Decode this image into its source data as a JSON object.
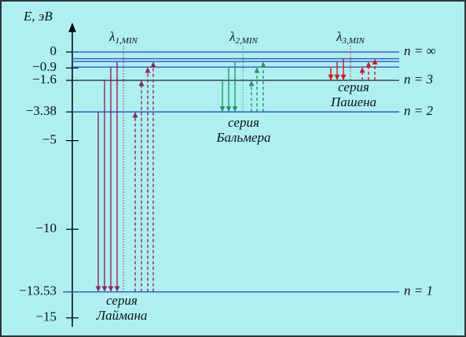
{
  "axis": {
    "label": "E, эВ",
    "ylim": [
      -15.5,
      1.6
    ],
    "ticks": [
      0,
      {
        "value": -0.9,
        "label": "−0.9"
      },
      {
        "value": -1.6,
        "label": "−1.6"
      },
      {
        "value": -3.38,
        "label": "−3.38"
      },
      {
        "value": -5,
        "label": "−5"
      },
      {
        "value": -10,
        "label": "−10"
      },
      {
        "value": -13.53,
        "label": "−13.53"
      },
      {
        "value": -15,
        "label": "−15"
      }
    ]
  },
  "levels": [
    {
      "label": "n = 1",
      "energy": -13.53
    },
    {
      "label": "n = 2",
      "energy": -3.38
    },
    {
      "label": "n = 3",
      "energy": -1.6
    },
    {
      "energy": -0.85
    },
    {
      "energy": -0.54
    },
    {
      "energy": -0.38
    },
    {
      "label": "n = ∞",
      "energy": 0
    }
  ],
  "series": [
    {
      "label": [
        "серия",
        "Лаймана"
      ],
      "lambda": {
        "symbol": "λ",
        "sub": "1,MIN"
      },
      "color": "#9b1f5e",
      "lower": 0,
      "upper": [
        1,
        2,
        3,
        4
      ]
    },
    {
      "label": [
        "серия",
        "Бальмера"
      ],
      "lambda": {
        "symbol": "λ",
        "sub": "2,MIN"
      },
      "color": "#1f9a62",
      "lower": 1,
      "upper": [
        2,
        3,
        4
      ]
    },
    {
      "label": [
        "серия",
        "Пашена"
      ],
      "lambda": {
        "symbol": "λ",
        "sub": "3,MIN"
      },
      "color": "#e0101e",
      "lower": 2,
      "upper": [
        3,
        4,
        5
      ]
    }
  ]
}
